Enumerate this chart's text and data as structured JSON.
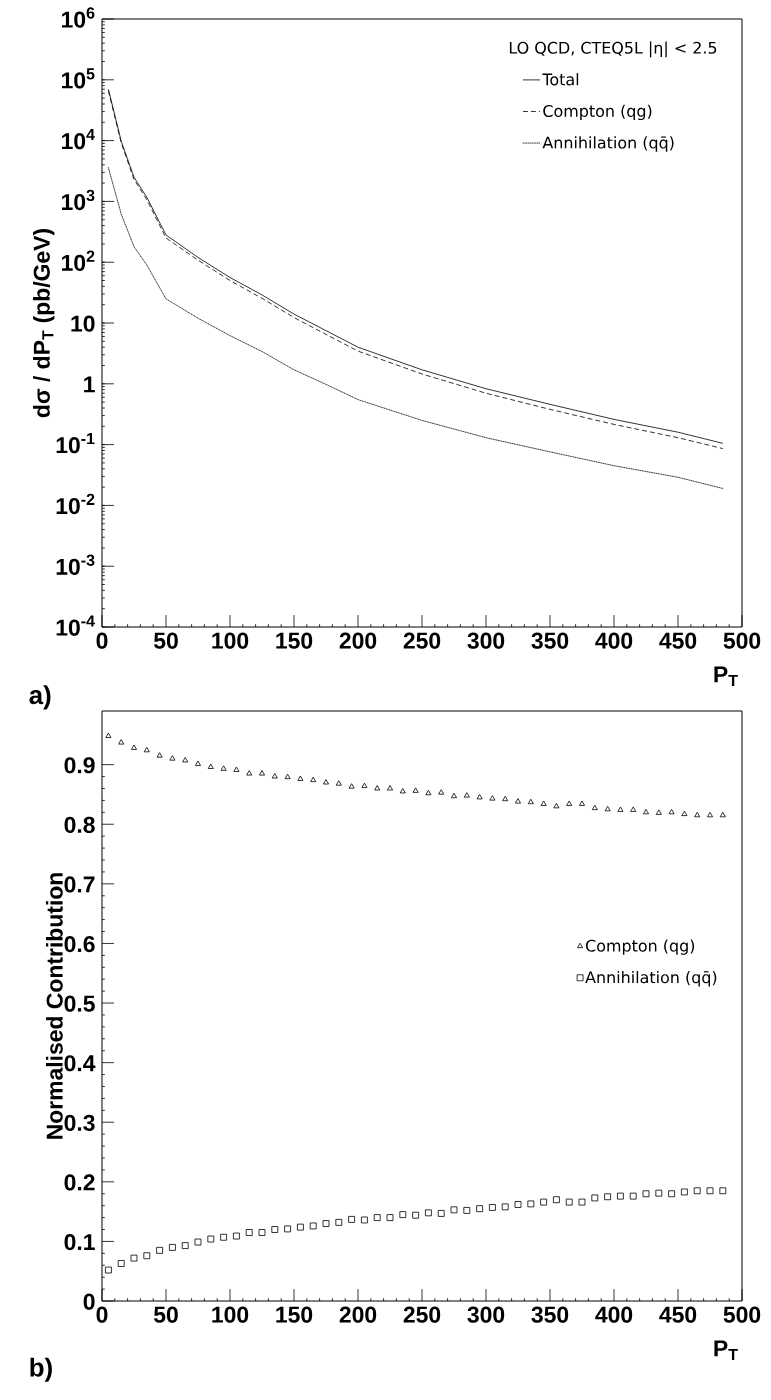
{
  "chart_data": [
    {
      "type": "line",
      "log": "y",
      "xlabel": "P$_{T}$",
      "ylabel": "dσ / dP$_{T}$ (pb/GeV)",
      "legend_title": "LO QCD, CTEQ5L |η| < 2.5",
      "legend": "top right",
      "annotations": [
        "a)"
      ],
      "xlim": [
        0,
        500
      ],
      "ylim": [
        0.0001,
        1000000
      ],
      "xticks": [
        0,
        50,
        100,
        150,
        200,
        250,
        300,
        350,
        400,
        450,
        500
      ],
      "yticks": [
        {
          "value": 0.0001,
          "label": "10$^{-4}$"
        },
        {
          "value": 0.001,
          "label": "10$^{-3}$"
        },
        {
          "value": 0.01,
          "label": "10$^{-2}$"
        },
        {
          "value": 0.1,
          "label": "10$^{-1}$"
        },
        1,
        10,
        {
          "value": 100,
          "label": "10$^{2}$"
        },
        {
          "value": 1000,
          "label": "10$^{3}$"
        },
        {
          "value": 10000,
          "label": "10$^{4}$"
        },
        {
          "value": 100000,
          "label": "10$^{5}$"
        },
        {
          "value": 1000000,
          "label": "10$^{6}$"
        }
      ],
      "x": [
        5,
        15,
        25,
        35,
        50,
        75,
        100,
        125,
        150,
        175,
        200,
        250,
        300,
        350,
        400,
        450,
        485
      ],
      "series": [
        {
          "name": "Total",
          "color": "#000000",
          "line_style": "solid",
          "values": [
            70000,
            9800,
            2500,
            1170,
            280,
            120,
            56,
            29,
            14,
            7.5,
            4.0,
            1.7,
            0.83,
            0.46,
            0.26,
            0.16,
            0.105
          ]
        },
        {
          "name": "Compton (qg)",
          "color": "#000000",
          "line_style": "dashed",
          "values": [
            66000,
            9200,
            2300,
            1070,
            250,
            108,
            50,
            25.5,
            12.3,
            6.5,
            3.45,
            1.45,
            0.7,
            0.38,
            0.215,
            0.13,
            0.086
          ]
        },
        {
          "name": "Annihilation (qq̄)",
          "color": "#000000",
          "line_style": "dotted",
          "values": [
            3600,
            620,
            180,
            90,
            25,
            12,
            6.2,
            3.4,
            1.7,
            0.98,
            0.55,
            0.25,
            0.13,
            0.076,
            0.045,
            0.029,
            0.019
          ]
        }
      ]
    },
    {
      "type": "scatter",
      "xlabel": "P$_{T}$",
      "ylabel": "Normalised Contribution",
      "legend": "right",
      "annotations": [
        "b)"
      ],
      "xlim": [
        0,
        500
      ],
      "ylim": [
        0,
        0.99
      ],
      "xticks": [
        0,
        50,
        100,
        150,
        200,
        250,
        300,
        350,
        400,
        450,
        500
      ],
      "yticks": [
        0,
        0.1,
        0.2,
        0.3,
        0.4,
        0.5,
        0.6,
        0.7,
        0.8,
        0.9
      ],
      "x": [
        5,
        15,
        25,
        35,
        45,
        55,
        65,
        75,
        85,
        95,
        105,
        115,
        125,
        135,
        145,
        155,
        165,
        175,
        185,
        195,
        205,
        215,
        225,
        235,
        245,
        255,
        265,
        275,
        285,
        295,
        305,
        315,
        325,
        335,
        345,
        355,
        365,
        375,
        385,
        395,
        405,
        415,
        425,
        435,
        445,
        455,
        465,
        475,
        485
      ],
      "series": [
        {
          "name": "Compton (qg)",
          "color": "#000000",
          "marker": "triangle",
          "values": [
            0.948,
            0.937,
            0.928,
            0.924,
            0.915,
            0.91,
            0.907,
            0.901,
            0.896,
            0.893,
            0.891,
            0.885,
            0.885,
            0.88,
            0.879,
            0.876,
            0.874,
            0.87,
            0.868,
            0.863,
            0.864,
            0.86,
            0.86,
            0.855,
            0.856,
            0.852,
            0.853,
            0.847,
            0.848,
            0.845,
            0.843,
            0.842,
            0.838,
            0.837,
            0.834,
            0.83,
            0.834,
            0.834,
            0.827,
            0.825,
            0.824,
            0.824,
            0.82,
            0.819,
            0.82,
            0.817,
            0.815,
            0.815,
            0.815
          ]
        },
        {
          "name": "Annihilation (qq̄)",
          "color": "#000000",
          "marker": "square",
          "values": [
            0.052,
            0.063,
            0.072,
            0.076,
            0.085,
            0.09,
            0.093,
            0.099,
            0.104,
            0.107,
            0.109,
            0.115,
            0.115,
            0.12,
            0.121,
            0.124,
            0.126,
            0.13,
            0.132,
            0.137,
            0.136,
            0.14,
            0.14,
            0.145,
            0.144,
            0.148,
            0.147,
            0.153,
            0.152,
            0.155,
            0.157,
            0.158,
            0.162,
            0.163,
            0.166,
            0.17,
            0.166,
            0.166,
            0.173,
            0.175,
            0.176,
            0.176,
            0.18,
            0.181,
            0.18,
            0.183,
            0.185,
            0.185,
            0.185
          ]
        }
      ]
    }
  ]
}
